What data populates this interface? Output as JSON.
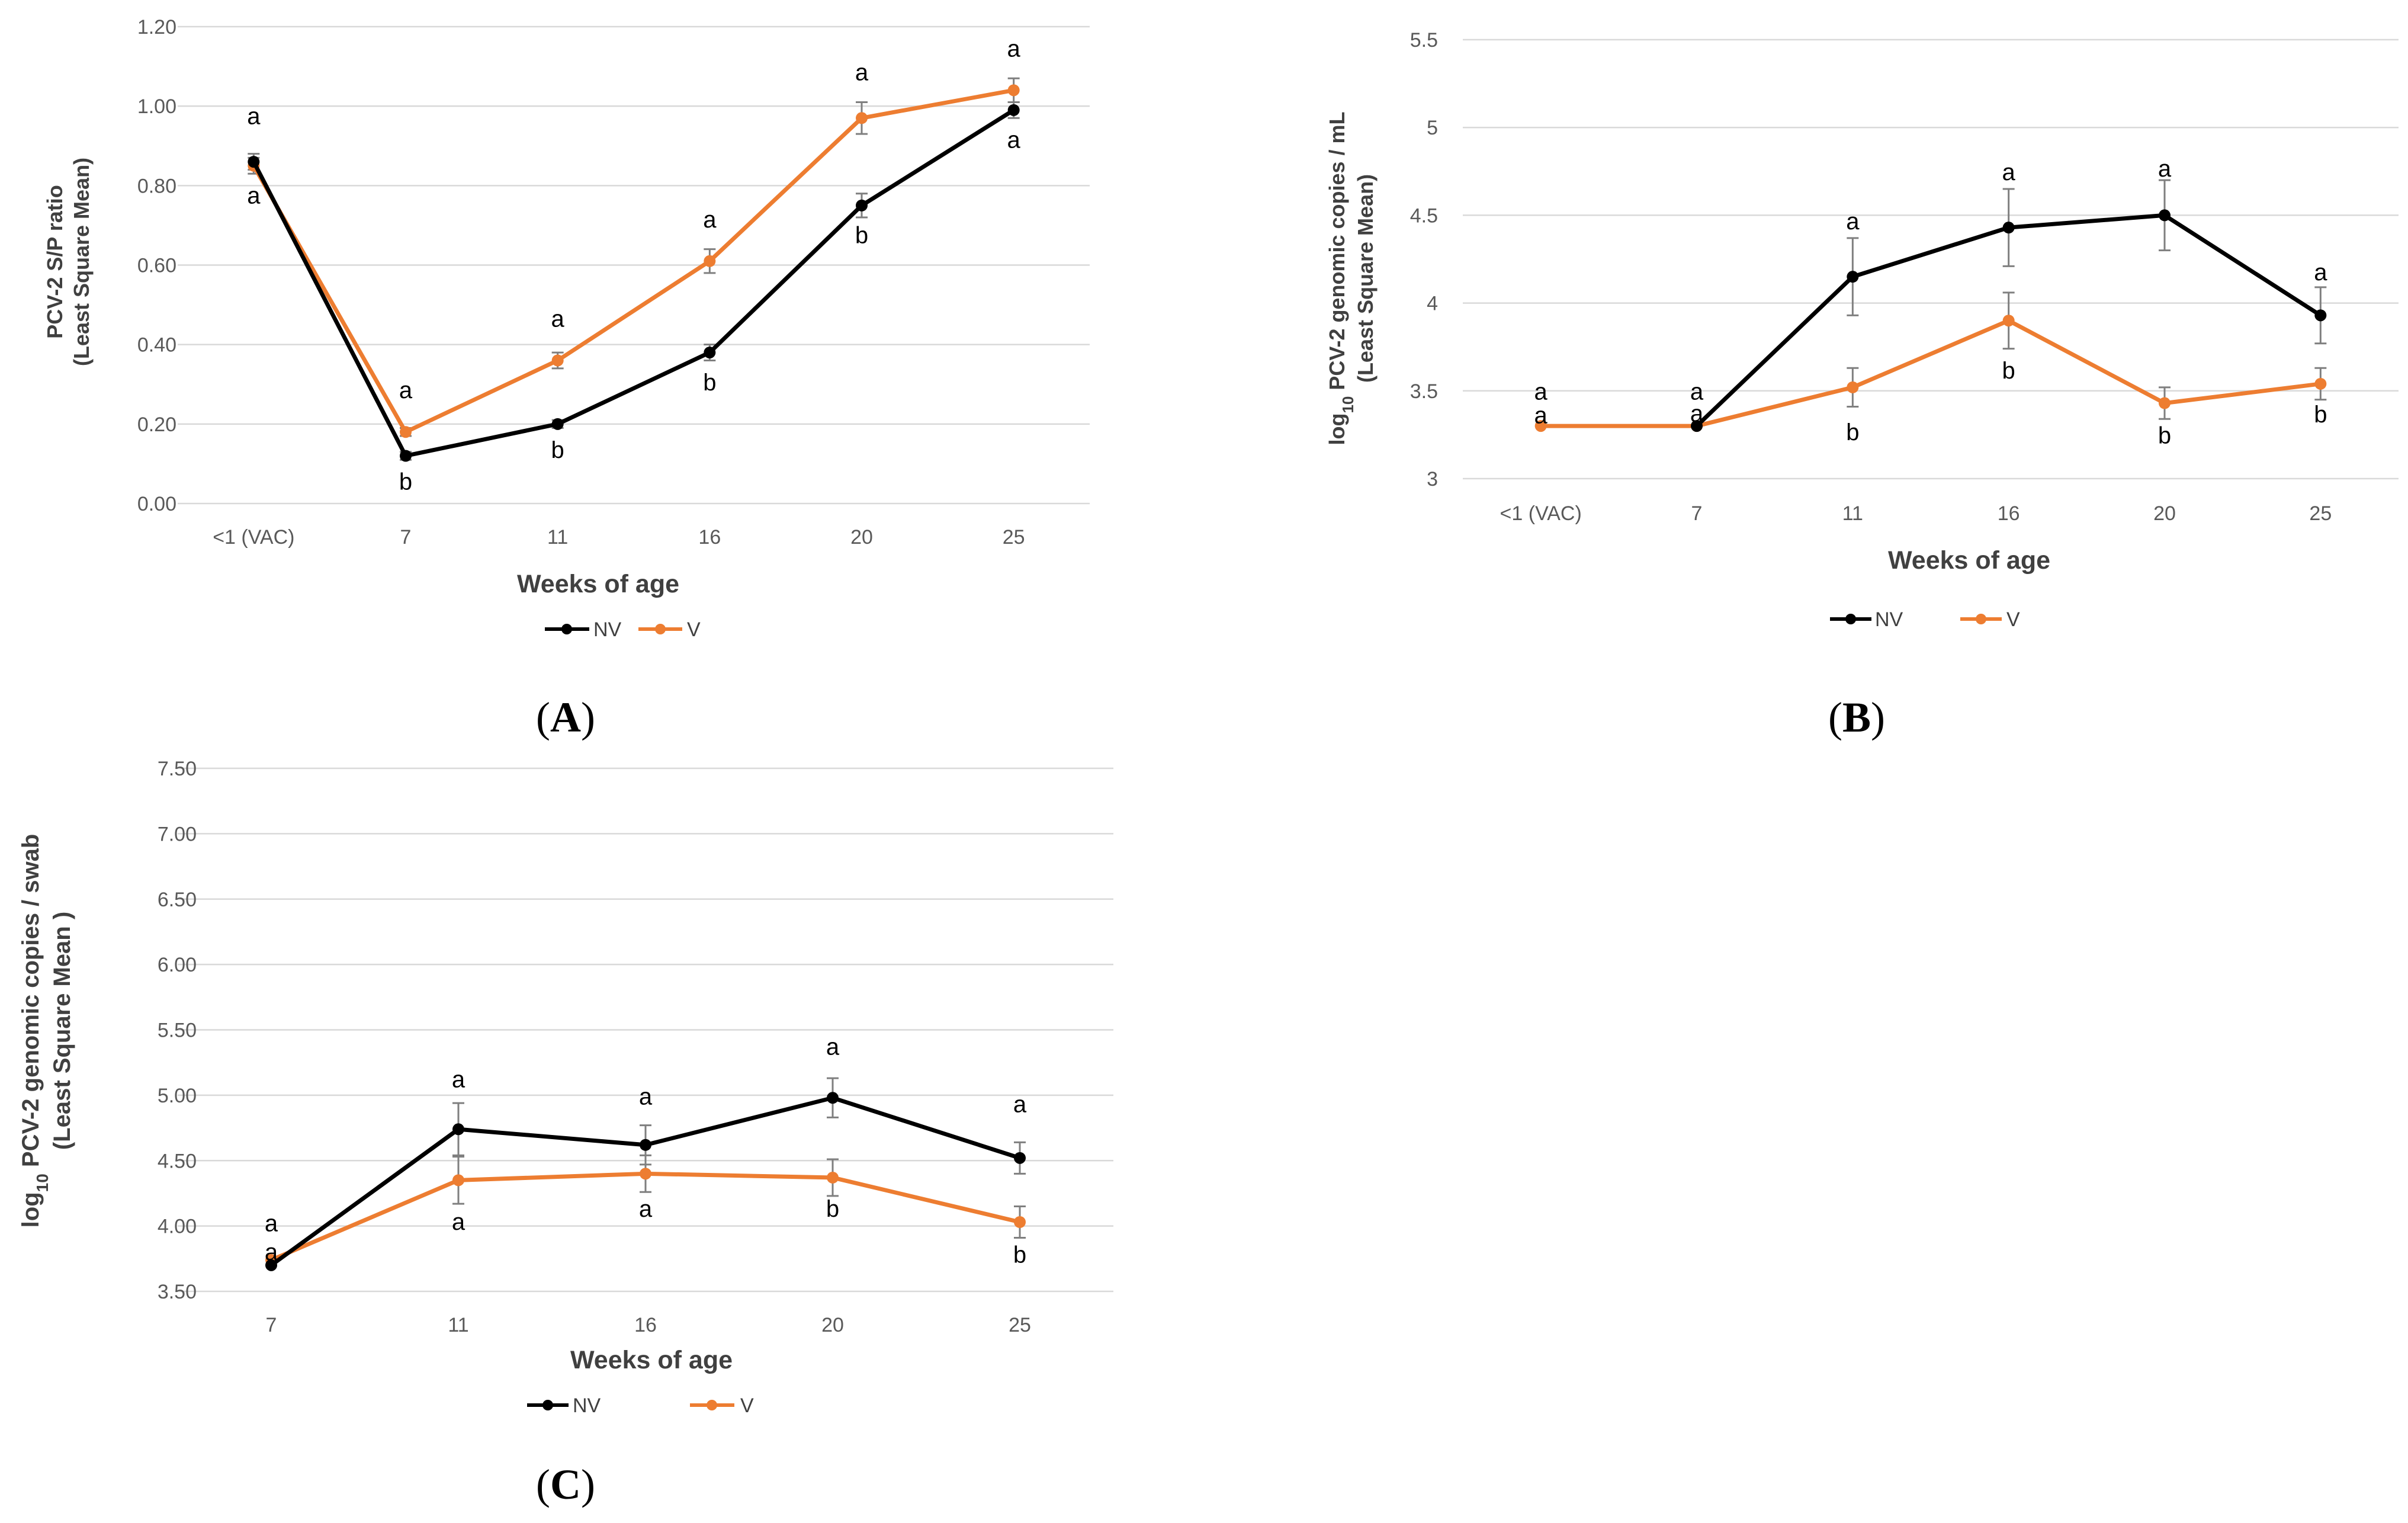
{
  "colors": {
    "NV": "#000000",
    "V": "#ED7D31"
  },
  "chart_data": [
    {
      "type": "line",
      "panel": "A",
      "categories": [
        "<1 (VAC)",
        "7",
        "11",
        "16",
        "20",
        "25"
      ],
      "yticks": [
        "0.00",
        "0.20",
        "0.40",
        "0.60",
        "0.80",
        "1.00",
        "1.20"
      ],
      "ylim": [
        0,
        1.2
      ],
      "xlabel": "Weeks of age",
      "ylabel_line1": "PCV-2  S/P ratio",
      "ylabel_line2": "(Least Square Mean)",
      "series": [
        {
          "name": "NV",
          "values": [
            0.86,
            0.12,
            0.2,
            0.38,
            0.75,
            0.99
          ],
          "errors": [
            0.02,
            0.01,
            0.01,
            0.02,
            0.03,
            0.02
          ]
        },
        {
          "name": "V",
          "values": [
            0.85,
            0.18,
            0.36,
            0.61,
            0.97,
            1.04
          ],
          "errors": [
            0.02,
            0.01,
            0.02,
            0.03,
            0.04,
            0.03
          ]
        }
      ],
      "annotations": [
        {
          "text": "a",
          "x": 0,
          "y": 0.955
        },
        {
          "text": "a",
          "x": 0,
          "y": 0.755
        },
        {
          "text": "a",
          "x": 1,
          "y": 0.265
        },
        {
          "text": "b",
          "x": 1,
          "y": 0.035
        },
        {
          "text": "a",
          "x": 2,
          "y": 0.445
        },
        {
          "text": "b",
          "x": 2,
          "y": 0.115
        },
        {
          "text": "a",
          "x": 3,
          "y": 0.695
        },
        {
          "text": "b",
          "x": 3,
          "y": 0.285
        },
        {
          "text": "a",
          "x": 4,
          "y": 1.065
        },
        {
          "text": "b",
          "x": 4,
          "y": 0.655
        },
        {
          "text": "a",
          "x": 5,
          "y": 1.125
        },
        {
          "text": "a",
          "x": 5,
          "y": 0.895
        }
      ]
    },
    {
      "type": "line",
      "panel": "B",
      "categories": [
        "<1 (VAC)",
        "7",
        "11",
        "16",
        "20",
        "25"
      ],
      "yticks": [
        "3",
        "3.5",
        "4",
        "4.5",
        "5",
        "5.5"
      ],
      "ylim": [
        3,
        5.5
      ],
      "xlabel": "Weeks of age",
      "ylabel_log": "log",
      "ylabel_sub": "10",
      "ylabel_rest": " PCV-2 genomic copies / mL",
      "ylabel_line2": "(Least Square Mean)",
      "series": [
        {
          "name": "NV",
          "values": [
            null,
            3.3,
            4.15,
            4.43,
            4.5,
            3.93
          ],
          "errors": [
            null,
            0,
            0.22,
            0.22,
            0.2,
            0.16
          ]
        },
        {
          "name": "V",
          "values": [
            3.3,
            3.3,
            3.52,
            3.9,
            3.43,
            3.54
          ],
          "errors": [
            0,
            0,
            0.11,
            0.16,
            0.09,
            0.09
          ]
        }
      ],
      "annotations": [
        {
          "text": "a",
          "x": 0,
          "y": 3.45
        },
        {
          "text": "a",
          "x": 0,
          "y": 3.315
        },
        {
          "text": "a",
          "x": 1,
          "y": 3.45
        },
        {
          "text": "a",
          "x": 1,
          "y": 3.325
        },
        {
          "text": "a",
          "x": 2,
          "y": 4.42
        },
        {
          "text": "b",
          "x": 2,
          "y": 3.22
        },
        {
          "text": "a",
          "x": 3,
          "y": 4.7
        },
        {
          "text": "b",
          "x": 3,
          "y": 3.57
        },
        {
          "text": "a",
          "x": 4,
          "y": 4.72
        },
        {
          "text": "b",
          "x": 4,
          "y": 3.2
        },
        {
          "text": "a",
          "x": 5,
          "y": 4.13
        },
        {
          "text": "b",
          "x": 5,
          "y": 3.32
        }
      ]
    },
    {
      "type": "line",
      "panel": "C",
      "categories": [
        "7",
        "11",
        "16",
        "20",
        "25"
      ],
      "yticks": [
        "3.50",
        "4.00",
        "4.50",
        "5.00",
        "5.50",
        "6.00",
        "6.50",
        "7.00",
        "7.50"
      ],
      "ylim": [
        3.5,
        7.5
      ],
      "xlabel": "Weeks of age",
      "ylabel_log": "log",
      "ylabel_sub": "10",
      "ylabel_rest": " PCV-2 genomic copies / swab",
      "ylabel_line2": "(Least Square Mean )",
      "series": [
        {
          "name": "NV",
          "values": [
            3.7,
            4.74,
            4.62,
            4.98,
            4.52
          ],
          "errors": [
            0,
            0.2,
            0.15,
            0.15,
            0.12
          ]
        },
        {
          "name": "V",
          "values": [
            3.74,
            4.35,
            4.4,
            4.37,
            4.03
          ],
          "errors": [
            0,
            0.18,
            0.14,
            0.14,
            0.12
          ]
        }
      ],
      "annotations": [
        {
          "text": "a",
          "x": 0,
          "y": 3.96
        },
        {
          "text": "a",
          "x": 0,
          "y": 3.74
        },
        {
          "text": "a",
          "x": 1,
          "y": 5.06
        },
        {
          "text": "a",
          "x": 1,
          "y": 3.97
        },
        {
          "text": "a",
          "x": 2,
          "y": 4.93
        },
        {
          "text": "a",
          "x": 2,
          "y": 4.07
        },
        {
          "text": "a",
          "x": 3,
          "y": 5.31
        },
        {
          "text": "b",
          "x": 3,
          "y": 4.07
        },
        {
          "text": "a",
          "x": 4,
          "y": 4.87
        },
        {
          "text": "b",
          "x": 4,
          "y": 3.72
        }
      ]
    }
  ],
  "legend": {
    "NV": "NV",
    "V": "V"
  },
  "panel_labels": {
    "A": "A",
    "B": "B",
    "C": "C"
  }
}
